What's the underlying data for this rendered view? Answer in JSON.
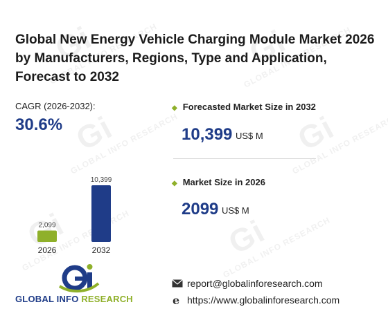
{
  "title": "Global New Energy Vehicle Charging Module Market 2026 by Manufacturers, Regions, Type and Application, Forecast to 2032",
  "cagr": {
    "label": "CAGR (2026-2032):",
    "value": "30.6%"
  },
  "kpis": [
    {
      "label": "Forecasted Market Size in 2032",
      "value": "10,399",
      "unit": "US$ M"
    },
    {
      "label": "Market Size in 2026",
      "value": "2099",
      "unit": "US$ M"
    }
  ],
  "chart_data": {
    "type": "bar",
    "categories": [
      "2026",
      "2032"
    ],
    "values": [
      2099,
      10399
    ],
    "value_labels": [
      "2,099",
      "10,399"
    ],
    "colors": [
      "#8fb02a",
      "#1f3c88"
    ],
    "ylim": [
      0,
      10399
    ],
    "title": "",
    "xlabel": "",
    "ylabel": "",
    "grid": false
  },
  "brand": {
    "name_part1": "GLOBAL INFO ",
    "name_part2": "RESEARCH"
  },
  "contact": {
    "email": "report@globalinforesearch.com",
    "website": "https://www.globalinforesearch.com"
  },
  "watermark": "GLOBAL INFO RESEARCH",
  "colors": {
    "accent_green": "#8fb02a",
    "accent_blue": "#1f3c88"
  },
  "icons": [
    "email-icon",
    "web-icon"
  ]
}
